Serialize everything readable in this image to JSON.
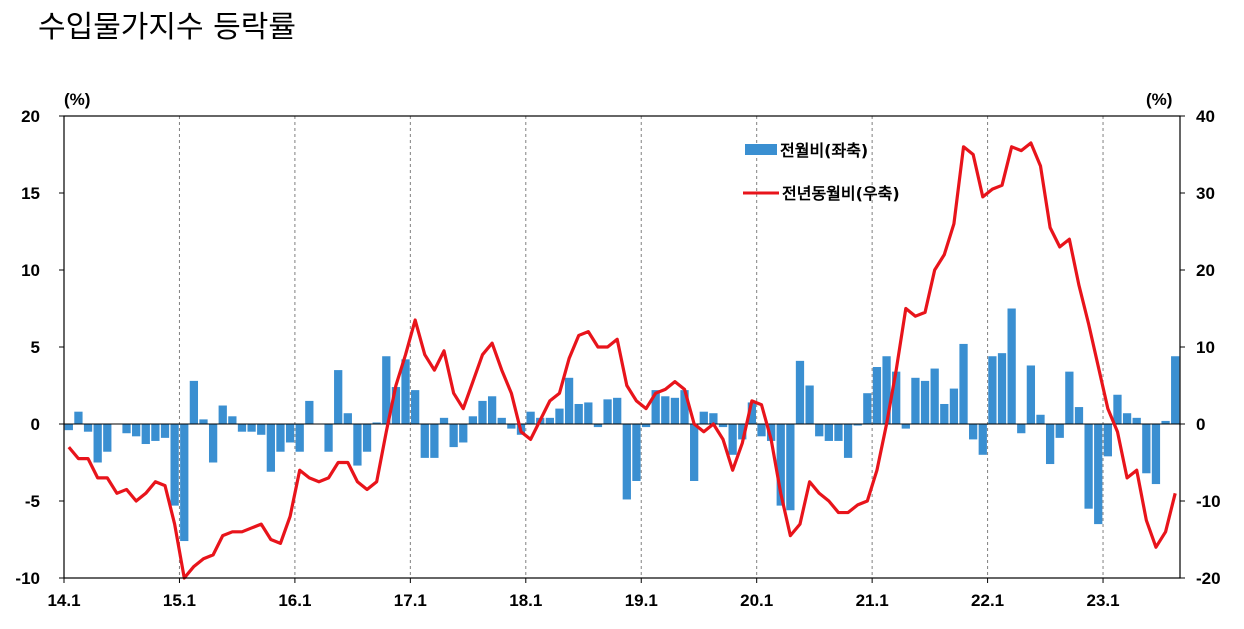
{
  "title": "수입물가지수 등락률",
  "chart_data": {
    "type": "bar",
    "units": {
      "left": "(%)",
      "right": "(%)"
    },
    "x_tick_labels": [
      "14.1",
      "15.1",
      "16.1",
      "17.1",
      "18.1",
      "19.1",
      "20.1",
      "21.1",
      "22.1",
      "23.1"
    ],
    "left_axis": {
      "ylim": [
        -10,
        20
      ],
      "ticks": [
        "-10",
        "-5",
        "0",
        "5",
        "10",
        "15",
        "20"
      ]
    },
    "right_axis": {
      "ylim": [
        -20,
        40
      ],
      "ticks": [
        "-20",
        "-10",
        "0",
        "10",
        "20",
        "30",
        "40"
      ]
    },
    "colors": {
      "bar": "#3a8fd1",
      "line": "#e8141b",
      "grid": "#808080"
    },
    "series": [
      {
        "name": "전월비(좌축)",
        "type": "bar",
        "axis": "left",
        "values": [
          -0.4,
          0.8,
          -0.5,
          -2.5,
          -1.8,
          0.0,
          -0.6,
          -0.8,
          -1.3,
          -1.1,
          -0.9,
          -5.3,
          -7.6,
          2.8,
          0.3,
          -2.5,
          1.2,
          0.5,
          -0.5,
          -0.5,
          -0.7,
          -3.1,
          -1.8,
          -1.2,
          -1.8,
          1.5,
          0.0,
          -1.8,
          3.5,
          0.7,
          -2.7,
          -1.8,
          0.1,
          4.4,
          2.4,
          4.2,
          2.2,
          -2.2,
          -2.2,
          0.4,
          -1.5,
          -1.2,
          0.5,
          1.5,
          1.8,
          0.4,
          -0.3,
          -0.7,
          0.8,
          0.4,
          0.4,
          1.0,
          3.0,
          1.3,
          1.4,
          -0.2,
          1.6,
          1.7,
          -4.9,
          -3.7,
          -0.2,
          2.2,
          1.8,
          1.7,
          2.2,
          -3.7,
          0.8,
          0.7,
          -0.2,
          -2.0,
          -1.0,
          1.4,
          -0.8,
          -1.1,
          -5.3,
          -5.6,
          4.1,
          2.5,
          -0.8,
          -1.1,
          -1.1,
          -2.2,
          -0.1,
          2.0,
          3.7,
          4.4,
          3.4,
          -0.3,
          3.0,
          2.8,
          3.6,
          1.3,
          2.3,
          5.2,
          -1.0,
          -2.0,
          4.4,
          4.6,
          7.5,
          -0.6,
          3.8,
          0.6,
          -2.6,
          -0.9,
          3.4,
          1.1,
          -5.5,
          -6.5,
          -2.1,
          1.9,
          0.7,
          0.4,
          -3.2,
          -3.9,
          0.2,
          4.4
        ]
      },
      {
        "name": "전년동월비(우축)",
        "type": "line",
        "axis": "right",
        "values": [
          -3.0,
          -4.5,
          -4.5,
          -7.0,
          -7.0,
          -9.0,
          -8.5,
          -10.0,
          -9.0,
          -7.5,
          -8.0,
          -13.0,
          -20.0,
          -18.5,
          -17.5,
          -17.0,
          -14.5,
          -14.0,
          -14.0,
          -13.5,
          -13.0,
          -15.0,
          -15.5,
          -12.0,
          -6.0,
          -7.0,
          -7.5,
          -7.0,
          -5.0,
          -5.0,
          -7.5,
          -8.5,
          -7.5,
          -1.0,
          5.0,
          9.0,
          13.5,
          9.0,
          7.0,
          9.5,
          4.0,
          2.0,
          5.5,
          9.0,
          10.5,
          7.0,
          4.0,
          -1.0,
          -2.0,
          0.5,
          3.0,
          4.0,
          8.5,
          11.5,
          12.0,
          10.0,
          10.0,
          11.0,
          5.0,
          3.0,
          2.0,
          4.0,
          4.5,
          5.5,
          4.5,
          0.0,
          -1.0,
          0.0,
          -2.0,
          -6.0,
          -2.5,
          3.0,
          2.5,
          -2.0,
          -9.0,
          -14.5,
          -13.0,
          -7.5,
          -9.0,
          -10.0,
          -11.5,
          -11.5,
          -10.5,
          -10.0,
          -6.0,
          0.0,
          7.0,
          15.0,
          14.0,
          14.5,
          20.0,
          22.0,
          26.0,
          36.0,
          35.0,
          29.5,
          30.5,
          31.0,
          36.0,
          35.5,
          36.5,
          33.5,
          25.5,
          23.0,
          24.0,
          18.0,
          13.0,
          7.5,
          2.0,
          -1.0,
          -7.0,
          -6.0,
          -12.5,
          -16.0,
          -14.0,
          -9.0
        ]
      }
    ],
    "legend": {
      "placement": "top-right"
    },
    "grid": {
      "vertical_dashed": true,
      "horizontal": false
    }
  }
}
